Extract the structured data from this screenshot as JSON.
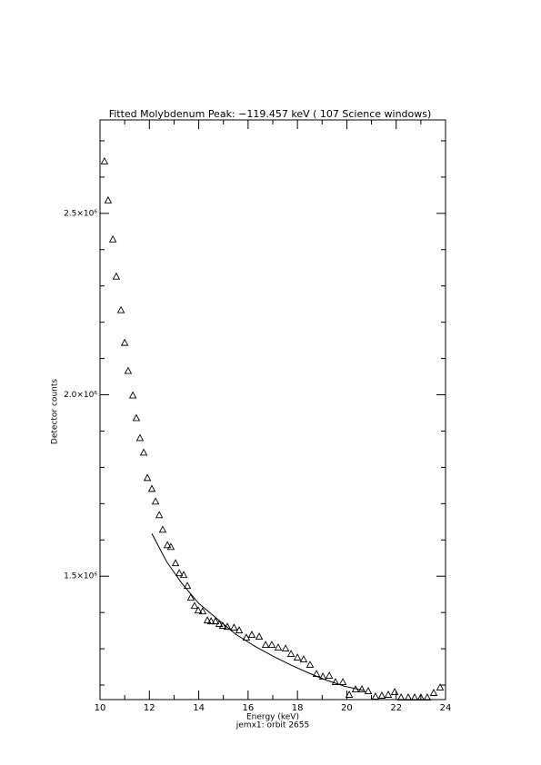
{
  "chart_data": {
    "type": "scatter",
    "title": "Fitted Molybdenum Peak:      −119.457 keV (         107 Science windows)",
    "x_label": "Energy (keV)",
    "subtitle": "jemx1: orbit 2655",
    "y_label": "Detector counts",
    "xlim": [
      10,
      24
    ],
    "xticks": [
      10,
      12,
      14,
      16,
      18,
      20,
      22,
      24
    ],
    "xminor": [
      11,
      13,
      15,
      17,
      19,
      21,
      23
    ],
    "ylim": [
      1160000,
      2757500
    ],
    "yticks": [
      {
        "value": 1500000,
        "label": "1.5×10⁶"
      },
      {
        "value": 2000000,
        "label": "2.0×10⁶"
      },
      {
        "value": 2500000,
        "label": "2.5×10⁶"
      }
    ],
    "yminor": [
      1200000,
      1300000,
      1400000,
      1600000,
      1700000,
      1800000,
      1900000,
      2100000,
      2200000,
      2300000,
      2400000,
      2600000,
      2700000
    ],
    "series": [
      {
        "type": "scatter",
        "color": "#000000",
        "x": [
          10.18,
          10.33,
          10.52,
          10.66,
          10.85,
          11.0,
          11.14,
          11.33,
          11.47,
          11.62,
          11.77,
          11.92,
          12.1,
          12.25,
          12.4,
          12.54,
          12.73,
          12.87,
          13.06,
          13.21,
          13.39,
          13.54,
          13.68,
          13.83,
          13.98,
          14.16,
          14.35,
          14.5,
          14.68,
          14.83,
          14.97,
          15.16,
          15.43,
          15.64,
          15.93,
          16.15,
          16.45,
          16.71,
          16.96,
          17.22,
          17.52,
          17.74,
          18.0,
          18.25,
          18.51,
          18.77,
          19.03,
          19.29,
          19.54,
          19.84,
          20.1,
          20.35,
          20.61,
          20.87,
          21.16,
          21.42,
          21.68,
          21.94,
          22.2,
          22.49,
          22.75,
          23.0,
          23.26,
          23.52,
          23.78
        ],
        "values": [
          2642500,
          2535000,
          2427500,
          2325000,
          2232500,
          2142500,
          2065000,
          1997500,
          1935000,
          1880000,
          1840000,
          1770000,
          1740000,
          1705000,
          1667500,
          1627500,
          1585000,
          1580000,
          1535000,
          1507500,
          1502500,
          1472500,
          1440000,
          1417500,
          1405000,
          1402500,
          1377500,
          1375000,
          1375000,
          1367500,
          1362500,
          1360000,
          1357500,
          1350000,
          1330000,
          1337500,
          1332500,
          1310000,
          1310000,
          1302500,
          1300000,
          1285000,
          1275000,
          1270000,
          1255000,
          1230000,
          1222500,
          1225000,
          1207500,
          1207500,
          1172500,
          1187500,
          1187500,
          1182500,
          1167500,
          1170000,
          1172500,
          1180000,
          1165000,
          1165000,
          1165000,
          1165000,
          1165000,
          1177500,
          1192500
        ]
      },
      {
        "type": "line",
        "color": "#000000",
        "x": [
          12.1,
          12.7,
          13.32,
          14.0,
          14.79,
          15.5,
          16.26,
          17.0,
          17.74,
          18.5,
          19.21,
          19.9,
          20.69
        ],
        "values": [
          1617500,
          1540000,
          1480000,
          1425000,
          1380000,
          1340000,
          1307500,
          1280000,
          1255000,
          1232000,
          1212500,
          1197000,
          1185000
        ]
      }
    ]
  }
}
